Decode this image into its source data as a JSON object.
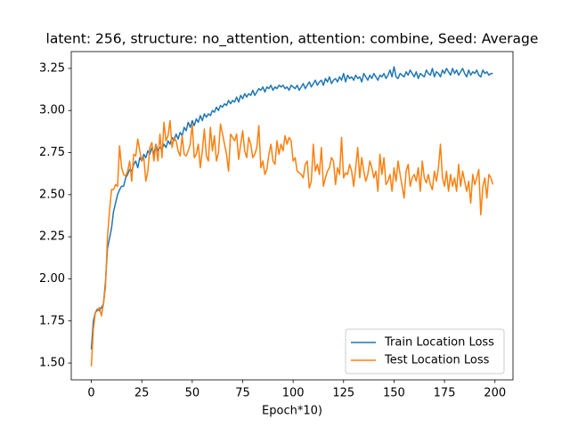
{
  "chart_data": {
    "type": "line",
    "title": "latent: 256, structure: no_attention, attention: combine, Seed: Average",
    "x_label": "Epoch*10)",
    "x": [
      0,
      1,
      2,
      3,
      4,
      5,
      6,
      7,
      8,
      9,
      10,
      11,
      12,
      13,
      14,
      15,
      16,
      17,
      18,
      19,
      20,
      21,
      22,
      23,
      24,
      25,
      26,
      27,
      28,
      29,
      30,
      31,
      32,
      33,
      34,
      35,
      36,
      37,
      38,
      39,
      40,
      41,
      42,
      43,
      44,
      45,
      46,
      47,
      48,
      49,
      50,
      51,
      52,
      53,
      54,
      55,
      56,
      57,
      58,
      59,
      60,
      61,
      62,
      63,
      64,
      65,
      66,
      67,
      68,
      69,
      70,
      71,
      72,
      73,
      74,
      75,
      76,
      77,
      78,
      79,
      80,
      81,
      82,
      83,
      84,
      85,
      86,
      87,
      88,
      89,
      90,
      91,
      92,
      93,
      94,
      95,
      96,
      97,
      98,
      99,
      100,
      101,
      102,
      103,
      104,
      105,
      106,
      107,
      108,
      109,
      110,
      111,
      112,
      113,
      114,
      115,
      116,
      117,
      118,
      119,
      120,
      121,
      122,
      123,
      124,
      125,
      126,
      127,
      128,
      129,
      130,
      131,
      132,
      133,
      134,
      135,
      136,
      137,
      138,
      139,
      140,
      141,
      142,
      143,
      144,
      145,
      146,
      147,
      148,
      149,
      150,
      151,
      152,
      153,
      154,
      155,
      156,
      157,
      158,
      159,
      160,
      161,
      162,
      163,
      164,
      165,
      166,
      167,
      168,
      169,
      170,
      171,
      172,
      173,
      174,
      175,
      176,
      177,
      178,
      179,
      180,
      181,
      182,
      183,
      184,
      185,
      186,
      187,
      188,
      189,
      190,
      191,
      192,
      193,
      194,
      195,
      196,
      197,
      198,
      199
    ],
    "series": [
      {
        "name": "Train Location Loss",
        "color": "#1f77b4",
        "values": [
          1.58,
          1.75,
          1.8,
          1.82,
          1.81,
          1.83,
          1.85,
          1.98,
          2.18,
          2.24,
          2.3,
          2.4,
          2.45,
          2.5,
          2.53,
          2.55,
          2.55,
          2.6,
          2.62,
          2.65,
          2.64,
          2.68,
          2.7,
          2.66,
          2.72,
          2.7,
          2.74,
          2.72,
          2.76,
          2.74,
          2.78,
          2.74,
          2.8,
          2.76,
          2.78,
          2.77,
          2.8,
          2.78,
          2.82,
          2.8,
          2.84,
          2.82,
          2.86,
          2.83,
          2.87,
          2.85,
          2.9,
          2.88,
          2.93,
          2.9,
          2.94,
          2.91,
          2.95,
          2.93,
          2.97,
          2.94,
          2.98,
          2.96,
          2.98,
          2.97,
          3.0,
          2.99,
          3.02,
          3.0,
          3.03,
          3.02,
          3.04,
          3.03,
          3.06,
          3.04,
          3.06,
          3.05,
          3.08,
          3.05,
          3.09,
          3.07,
          3.1,
          3.08,
          3.1,
          3.09,
          3.12,
          3.09,
          3.11,
          3.13,
          3.12,
          3.14,
          3.11,
          3.14,
          3.13,
          3.15,
          3.12,
          3.14,
          3.13,
          3.15,
          3.14,
          3.15,
          3.13,
          3.14,
          3.12,
          3.15,
          3.14,
          3.13,
          3.15,
          3.12,
          3.14,
          3.16,
          3.13,
          3.15,
          3.17,
          3.14,
          3.16,
          3.18,
          3.15,
          3.17,
          3.18,
          3.15,
          3.19,
          3.17,
          3.2,
          3.16,
          3.18,
          3.19,
          3.17,
          3.2,
          3.18,
          3.22,
          3.17,
          3.21,
          3.19,
          3.2,
          3.18,
          3.21,
          3.19,
          3.2,
          3.17,
          3.22,
          3.2,
          3.18,
          3.21,
          3.19,
          3.22,
          3.2,
          3.18,
          3.21,
          3.2,
          3.22,
          3.19,
          3.21,
          3.24,
          3.2,
          3.26,
          3.2,
          3.19,
          3.22,
          3.21,
          3.2,
          3.23,
          3.21,
          3.24,
          3.22,
          3.2,
          3.23,
          3.19,
          3.22,
          3.21,
          3.2,
          3.24,
          3.22,
          3.21,
          3.25,
          3.2,
          3.23,
          3.22,
          3.2,
          3.24,
          3.22,
          3.25,
          3.23,
          3.21,
          3.25,
          3.22,
          3.24,
          3.21,
          3.23,
          3.25,
          3.22,
          3.2,
          3.24,
          3.21,
          3.23,
          3.22,
          3.24,
          3.21,
          3.2,
          3.24,
          3.22,
          3.23,
          3.21,
          3.22,
          3.22
        ]
      },
      {
        "name": "Test Location Loss",
        "color": "#ff7f0e",
        "values": [
          1.48,
          1.7,
          1.8,
          1.81,
          1.83,
          1.78,
          1.85,
          1.95,
          2.25,
          2.4,
          2.53,
          2.53,
          2.56,
          2.55,
          2.79,
          2.66,
          2.62,
          2.61,
          2.64,
          2.7,
          2.58,
          2.74,
          2.73,
          2.83,
          2.76,
          2.7,
          2.72,
          2.58,
          2.64,
          2.78,
          2.81,
          2.7,
          2.8,
          2.7,
          2.86,
          2.72,
          2.93,
          2.82,
          2.85,
          2.94,
          2.78,
          2.84,
          2.82,
          2.76,
          2.73,
          2.85,
          2.74,
          2.73,
          2.76,
          2.8,
          2.92,
          2.72,
          2.74,
          2.8,
          2.66,
          2.76,
          2.89,
          2.73,
          2.7,
          2.9,
          2.76,
          2.85,
          2.7,
          2.75,
          2.92,
          2.86,
          2.8,
          2.74,
          2.64,
          2.86,
          2.84,
          2.82,
          2.86,
          2.71,
          2.8,
          2.88,
          2.76,
          2.72,
          2.84,
          2.8,
          2.72,
          2.74,
          2.78,
          2.91,
          2.66,
          2.7,
          2.62,
          2.65,
          2.74,
          2.8,
          2.7,
          2.68,
          2.82,
          2.74,
          2.8,
          2.76,
          2.85,
          2.8,
          2.84,
          2.82,
          2.7,
          2.72,
          2.64,
          2.63,
          2.62,
          2.6,
          2.68,
          2.7,
          2.54,
          2.58,
          2.8,
          2.64,
          2.68,
          2.62,
          2.78,
          2.55,
          2.6,
          2.64,
          2.66,
          2.72,
          2.7,
          2.56,
          2.66,
          2.62,
          2.84,
          2.6,
          2.63,
          2.62,
          2.68,
          2.64,
          2.55,
          2.66,
          2.78,
          2.6,
          2.72,
          2.64,
          2.58,
          2.62,
          2.7,
          2.66,
          2.6,
          2.64,
          2.52,
          2.74,
          2.62,
          2.72,
          2.56,
          2.58,
          2.62,
          2.52,
          2.66,
          2.58,
          2.7,
          2.62,
          2.55,
          2.48,
          2.64,
          2.68,
          2.55,
          2.6,
          2.62,
          2.58,
          2.66,
          2.52,
          2.7,
          2.6,
          2.57,
          2.62,
          2.56,
          2.53,
          2.64,
          2.58,
          2.66,
          2.8,
          2.6,
          2.55,
          2.64,
          2.52,
          2.62,
          2.55,
          2.6,
          2.52,
          2.68,
          2.55,
          2.64,
          2.58,
          2.52,
          2.58,
          2.45,
          2.62,
          2.56,
          2.6,
          2.65,
          2.38,
          2.55,
          2.6,
          2.48,
          2.62,
          2.6,
          2.56
        ]
      }
    ],
    "xlim": [
      -9.95,
      208.95
    ],
    "ylim": [
      1.4,
      3.35
    ],
    "xticks": [
      0,
      25,
      50,
      75,
      100,
      125,
      150,
      175,
      200
    ],
    "yticks": [
      {
        "value": 1.5,
        "label": "1.50"
      },
      1.75,
      {
        "value": 2,
        "label": "2.00"
      },
      2.25,
      {
        "value": 2.5,
        "label": "2.50"
      },
      2.75,
      {
        "value": 3,
        "label": "3.00"
      },
      3.25
    ],
    "grid": false,
    "legend": "lower right"
  }
}
